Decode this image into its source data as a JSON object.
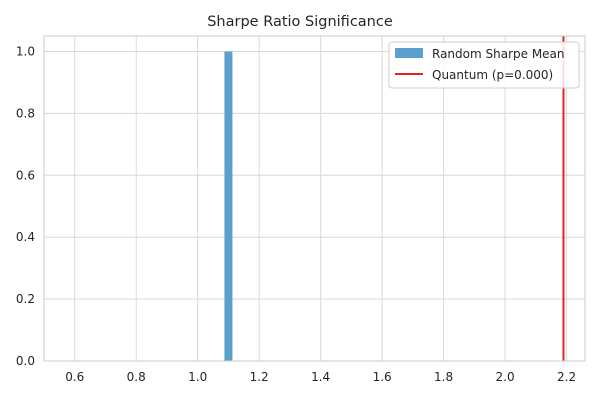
{
  "chart_data": {
    "type": "bar",
    "title": "Sharpe Ratio Significance",
    "xlabel": "",
    "ylabel": "",
    "xlim": [
      0.5,
      2.26
    ],
    "ylim": [
      0,
      1.05
    ],
    "xticks": [
      0.6,
      0.8,
      1.0,
      1.2,
      1.4,
      1.6,
      1.8,
      2.0,
      2.2
    ],
    "xtick_labels": [
      "0.6",
      "0.8",
      "1.0",
      "1.2",
      "1.4",
      "1.6",
      "1.8",
      "2.0",
      "2.2"
    ],
    "yticks": [
      0.0,
      0.2,
      0.4,
      0.6,
      0.8,
      1.0
    ],
    "ytick_labels": [
      "0.0",
      "0.2",
      "0.4",
      "0.6",
      "0.8",
      "1.0"
    ],
    "grid": true,
    "legend_position": "top-right",
    "series": [
      {
        "name": "Random Sharpe Mean",
        "kind": "histogram",
        "color": "#5b9fcf",
        "bins": [
          {
            "start": 1.087,
            "end": 1.113,
            "value": 1.0
          }
        ]
      },
      {
        "name": "Quantum (p=0.000)",
        "kind": "vline",
        "color": "#e3241b",
        "x": 2.19
      }
    ]
  }
}
